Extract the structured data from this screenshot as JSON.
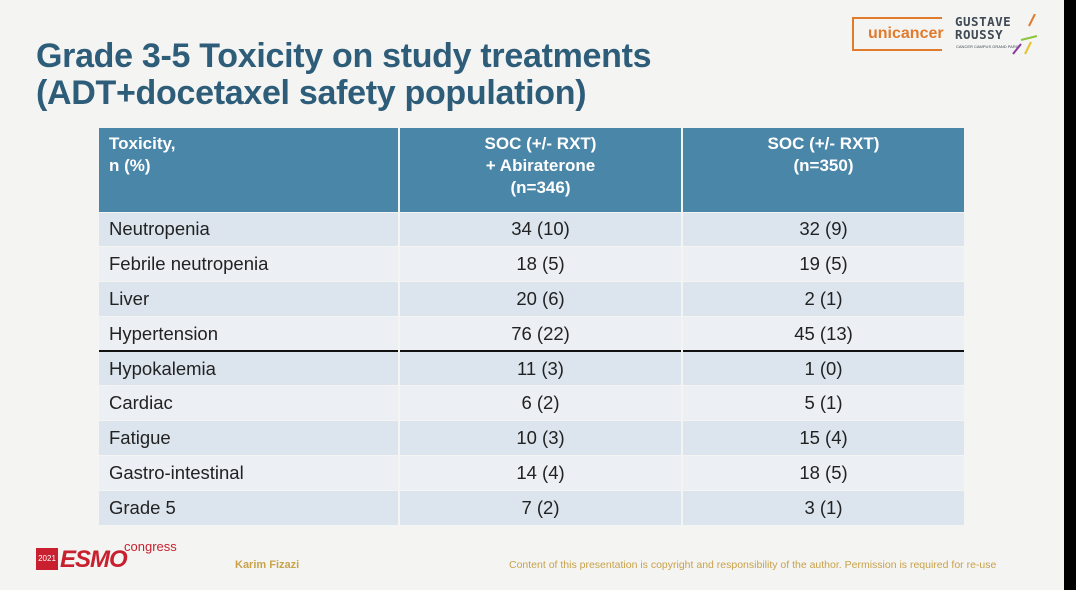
{
  "title": {
    "line1": "Grade 3-5 Toxicity on study treatments",
    "line2": "(ADT+docetaxel safety population)"
  },
  "logos": {
    "unicancer": "unicancer",
    "gustave_line1": "GUSTAVE",
    "gustave_line2": "ROUSSY",
    "gustave_tag": "CANCER CAMPUS GRAND PARIS"
  },
  "table": {
    "headers": [
      {
        "line1": "Toxicity,",
        "line2": "n (%)",
        "line3": ""
      },
      {
        "line1": "SOC (+/- RXT)",
        "line2": "+ Abiraterone",
        "line3": "(n=346)"
      },
      {
        "line1": "SOC (+/- RXT)",
        "line2": "(n=350)",
        "line3": ""
      }
    ],
    "rows": [
      {
        "name": "Neutropenia",
        "abi": "34 (10)",
        "soc": "32 (9)"
      },
      {
        "name": "Febrile neutropenia",
        "abi": "18 (5)",
        "soc": "19 (5)"
      },
      {
        "name": "Liver",
        "abi": "20 (6)",
        "soc": "2 (1)"
      },
      {
        "name": "Hypertension",
        "abi": "76 (22)",
        "soc": "45 (13)"
      },
      {
        "name": "Hypokalemia",
        "abi": "11 (3)",
        "soc": "1 (0)"
      },
      {
        "name": "Cardiac",
        "abi": "6 (2)",
        "soc": "5 (1)"
      },
      {
        "name": "Fatigue",
        "abi": "10 (3)",
        "soc": "15 (4)"
      },
      {
        "name": "Gastro-intestinal",
        "abi": "14 (4)",
        "soc": "18 (5)"
      },
      {
        "name": "Grade 5",
        "abi": "7 (2)",
        "soc": "3 (1)"
      }
    ]
  },
  "footer": {
    "esmo_year": "2021",
    "esmo_name": "ESMO",
    "esmo_congress": "congress",
    "author": "Karim Fizazi",
    "copyright": "Content of this presentation is copyright and responsibility of the author. Permission is required for re-use"
  },
  "colors": {
    "title": "#2e5d7a",
    "header_bg": "#4a86a8",
    "row_odd": "#dce5ee",
    "row_even": "#ecf0f5",
    "unicancer": "#e07b2e",
    "esmo": "#c8202f",
    "footer_text": "#c9a24a"
  }
}
